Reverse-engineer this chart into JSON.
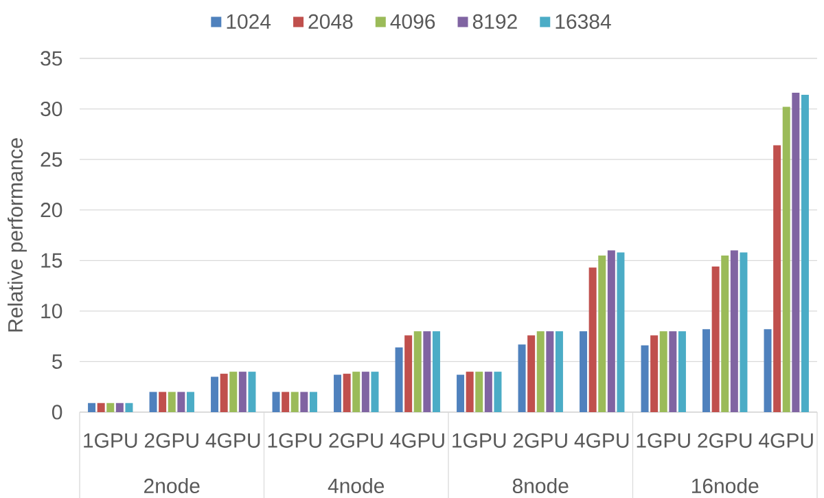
{
  "chart_data": {
    "type": "bar",
    "ylabel": "Relative performance",
    "categories": [
      "1GPU",
      "2GPU",
      "4GPU",
      "1GPU",
      "2GPU",
      "4GPU",
      "1GPU",
      "2GPU",
      "4GPU",
      "1GPU",
      "2GPU",
      "4GPU"
    ],
    "annotations": [
      "2node",
      "4node",
      "8node",
      "16node"
    ],
    "series": [
      {
        "name": "1024",
        "color": "#4f81bd",
        "values": [
          0.9,
          2,
          3.5,
          2,
          3.7,
          6.4,
          3.7,
          6.7,
          8,
          6.6,
          8.2,
          8.2
        ]
      },
      {
        "name": "2048",
        "color": "#c0504d",
        "values": [
          0.9,
          2,
          3.8,
          2,
          3.8,
          7.6,
          4,
          7.6,
          14.3,
          7.6,
          14.4,
          26.4
        ]
      },
      {
        "name": "4096",
        "color": "#9bbb59",
        "values": [
          0.9,
          2,
          4,
          2,
          4,
          8,
          4,
          8,
          15.5,
          8,
          15.5,
          30.2
        ]
      },
      {
        "name": "8192",
        "color": "#8064a2",
        "values": [
          0.9,
          2,
          4,
          2,
          4,
          8,
          4,
          8,
          16,
          8,
          16,
          31.6
        ]
      },
      {
        "name": "16384",
        "color": "#4bacc6",
        "values": [
          0.9,
          2,
          4,
          2,
          4,
          8,
          4,
          8,
          15.8,
          8,
          15.8,
          31.4
        ]
      }
    ],
    "ylim": [
      0,
      35
    ],
    "yticks": [
      0,
      5,
      10,
      15,
      20,
      25,
      30,
      35
    ],
    "grid": "y",
    "legend": "top"
  }
}
